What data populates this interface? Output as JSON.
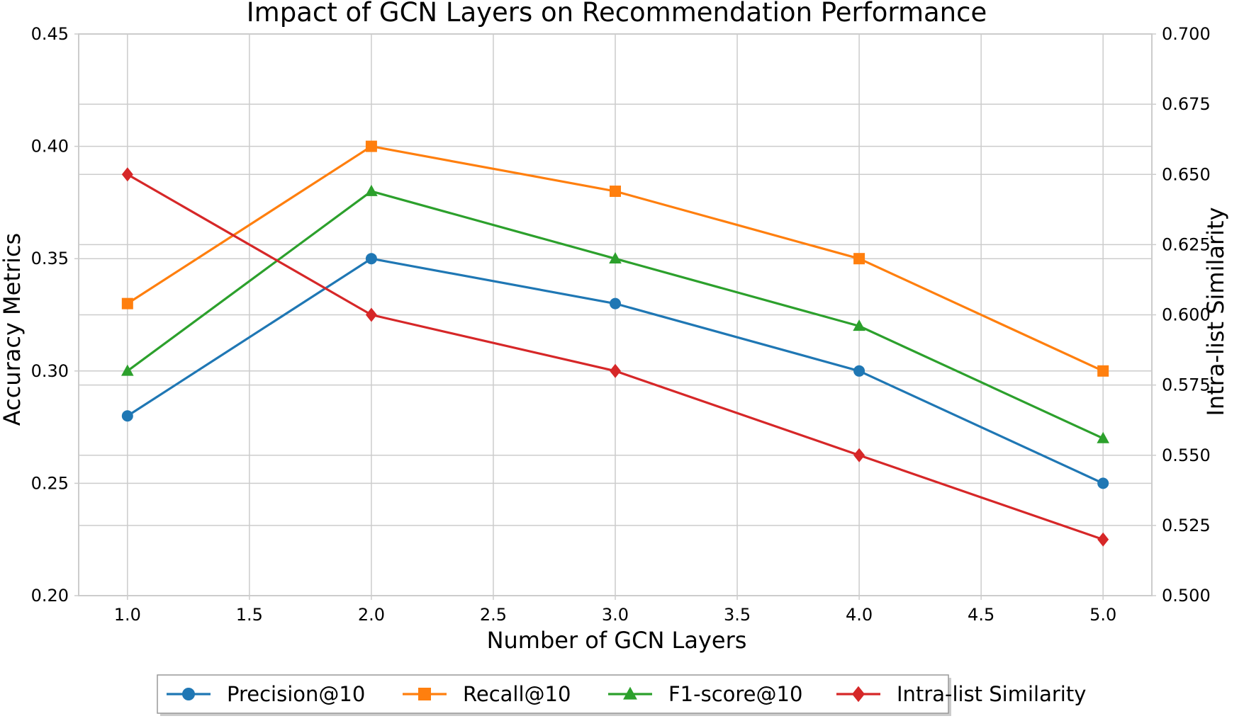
{
  "chart_data": {
    "type": "line",
    "title": "Impact of GCN Layers on Recommendation Performance",
    "xlabel": "Number of GCN Layers",
    "ylabel_left": "Accuracy Metrics",
    "ylabel_right": "Intra-list Similarity",
    "xlim": [
      0.8,
      5.2
    ],
    "ylim_left": [
      0.2,
      0.45
    ],
    "ylim_right": [
      0.5,
      0.7
    ],
    "x_ticks": [
      "1.0",
      "1.5",
      "2.0",
      "2.5",
      "3.0",
      "3.5",
      "4.0",
      "4.5",
      "5.0"
    ],
    "y_left_ticks": [
      "0.20",
      "0.25",
      "0.30",
      "0.35",
      "0.40",
      "0.45"
    ],
    "y_right_ticks": [
      "0.500",
      "0.525",
      "0.550",
      "0.575",
      "0.600",
      "0.625",
      "0.650",
      "0.675",
      "0.700"
    ],
    "x": [
      1.0,
      2.0,
      3.0,
      4.0,
      5.0
    ],
    "grid": true,
    "legend_position": "bottom-center",
    "series": [
      {
        "name": "Precision@10",
        "axis": "left",
        "values": [
          0.28,
          0.35,
          0.33,
          0.3,
          0.25
        ],
        "color": "#1f77b4",
        "marker": "circle"
      },
      {
        "name": "Recall@10",
        "axis": "left",
        "values": [
          0.33,
          0.4,
          0.38,
          0.35,
          0.3
        ],
        "color": "#ff7f0e",
        "marker": "square"
      },
      {
        "name": "F1-score@10",
        "axis": "left",
        "values": [
          0.3,
          0.38,
          0.35,
          0.32,
          0.27
        ],
        "color": "#2ca02c",
        "marker": "triangle"
      },
      {
        "name": "Intra-list Similarity",
        "axis": "right",
        "values": [
          0.65,
          0.6,
          0.58,
          0.55,
          0.52
        ],
        "color": "#d62728",
        "marker": "diamond"
      }
    ]
  }
}
